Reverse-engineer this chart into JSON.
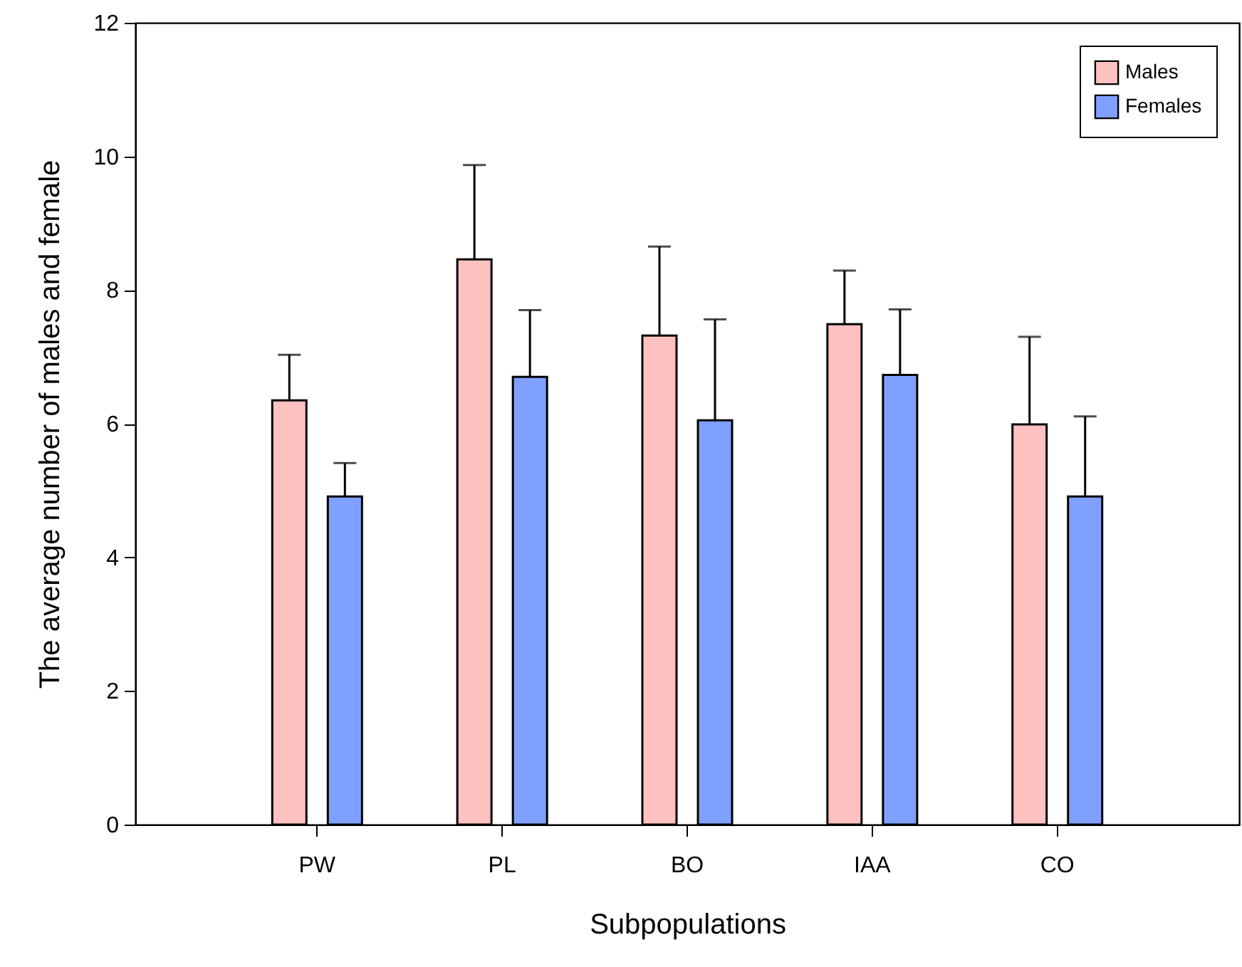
{
  "chart_data": {
    "type": "bar",
    "xlabel": "Subpopulations",
    "ylabel": "The average number of males and female",
    "categories": [
      "PW",
      "PL",
      "BO",
      "IAA",
      "CO"
    ],
    "series": [
      {
        "name": "Males",
        "color": "#ffc0c0",
        "values": [
          6.35,
          8.46,
          7.32,
          7.49,
          5.99
        ],
        "errors": [
          [
            6.35,
            7.03
          ],
          [
            8.46,
            9.87
          ],
          [
            7.32,
            8.65
          ],
          [
            7.49,
            8.29
          ],
          [
            5.99,
            7.3
          ]
        ]
      },
      {
        "name": "Females",
        "color": "#80a0ff",
        "values": [
          4.91,
          6.7,
          6.05,
          6.73,
          4.91
        ],
        "errors": [
          [
            4.91,
            5.41
          ],
          [
            6.7,
            7.7
          ],
          [
            6.05,
            7.56
          ],
          [
            6.73,
            7.71
          ],
          [
            4.91,
            6.11
          ]
        ]
      }
    ],
    "ylim": [
      0,
      12
    ],
    "yticks": [
      0,
      2,
      4,
      6,
      8,
      10,
      12
    ],
    "legend": "top right"
  }
}
